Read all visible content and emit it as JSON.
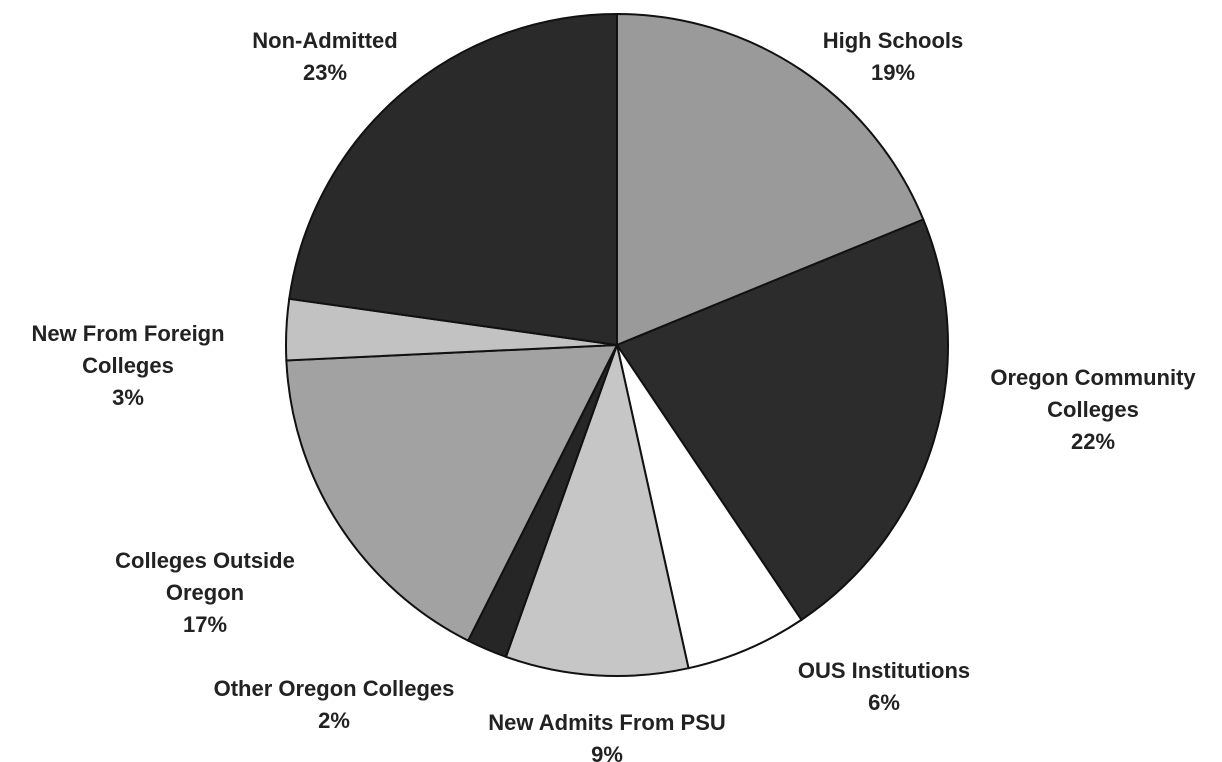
{
  "chart_data": {
    "type": "pie",
    "categories": [
      "High Schools",
      "Oregon Community Colleges",
      "OUS Institutions",
      "New Admits From PSU",
      "Other Oregon Colleges",
      "Colleges Outside Oregon",
      "New From Foreign Colleges",
      "Non-Admitted"
    ],
    "values": [
      19,
      22,
      6,
      9,
      2,
      17,
      3,
      23
    ],
    "value_labels": [
      "19%",
      "22%",
      "6%",
      "9%",
      "2%",
      "17%",
      "3%",
      "23%"
    ],
    "colors": [
      "#9a9a9a",
      "#2c2c2c",
      "#ffffff",
      "#c6c6c6",
      "#262626",
      "#a2a2a2",
      "#c2c2c2",
      "#2a2a2a"
    ]
  }
}
